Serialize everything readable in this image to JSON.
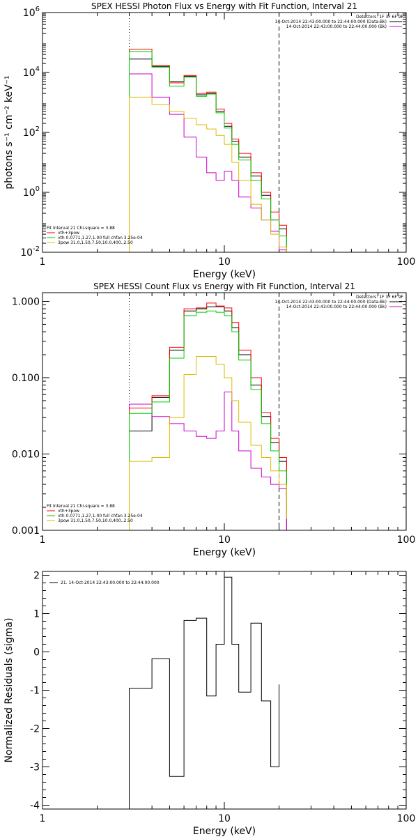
{
  "chart_data": [
    {
      "type": "line",
      "title": "SPEX HESSI Photon Flux vs Energy with Fit Function, Interval 21",
      "xlabel": "Energy (keV)",
      "ylabel": "photons s⁻¹ cm⁻² keV⁻¹",
      "xscale": "log",
      "yscale": "log",
      "xlim": [
        1,
        100
      ],
      "ylim": [
        0.01,
        1000000
      ],
      "xticks": [
        {
          "v": 1,
          "label": "1"
        },
        {
          "v": 10,
          "label": "10"
        },
        {
          "v": 100,
          "label": "100"
        }
      ],
      "yticks": [
        {
          "v": 0.01,
          "base": "10",
          "exp": "-2"
        },
        {
          "v": 1,
          "base": "10",
          "exp": "0"
        },
        {
          "v": 100,
          "base": "10",
          "exp": "2"
        },
        {
          "v": 10000,
          "base": "10",
          "exp": "4"
        },
        {
          "v": 1000000,
          "base": "10",
          "exp": "6"
        }
      ],
      "vlines": [
        {
          "x": 3.0,
          "style": "dotted"
        },
        {
          "x": 20.0,
          "style": "dashed"
        }
      ],
      "legend_top_right": [
        {
          "text": "Detectors: 1F 3F 6F 9F",
          "color": ""
        },
        {
          "text": "14-Oct-2014 22:43:00.000 to 22:44:00.000 (Data-Bk)",
          "color": "#000000"
        },
        {
          "text": "14-Oct-2014 22:43:00.000 to 22:44:00.000 (Bk)",
          "color": "#cc00cc"
        }
      ],
      "legend_bottom_left": [
        {
          "text": "Fit Interval 21   Chi-square = 3.88",
          "color": ""
        },
        {
          "text": "vth+3pow",
          "color": "#ff0000"
        },
        {
          "text": "vth 0.0771,1.27,1.00  full chfan 3.25e-04",
          "color": "#00cc00"
        },
        {
          "text": "3pow 31.0,1.50,7.50,10.0,400.,2.50",
          "color": "#ddbb00"
        }
      ],
      "bin_edges": [
        3.0,
        4.0,
        5.0,
        6.0,
        7.0,
        8.0,
        9.0,
        10.0,
        11.0,
        12.0,
        14.0,
        16.0,
        18.0,
        20.0,
        22.0
      ],
      "series": [
        {
          "name": "Data-Bk",
          "color": "#000000",
          "values": [
            28000,
            16000,
            5000,
            7500,
            1800,
            2000,
            500,
            160,
            50,
            15,
            3.5,
            0.8,
            0.12,
            0.06
          ]
        },
        {
          "name": "Bk",
          "color": "#cc00cc",
          "values": [
            9000,
            1500,
            400,
            70,
            15,
            4.5,
            2.5,
            5,
            2.5,
            0.7,
            0.3,
            0.12,
            0.05,
            0.012
          ]
        },
        {
          "name": "vth+3pow",
          "color": "#ff0000",
          "values": [
            60000,
            17000,
            4500,
            8000,
            2000,
            2200,
            600,
            200,
            60,
            20,
            4.5,
            1.0,
            0.22,
            0.08,
            0.012
          ]
        },
        {
          "name": "vth",
          "color": "#00cc00",
          "values": [
            50000,
            15000,
            3500,
            7000,
            1600,
            1900,
            450,
            140,
            40,
            12,
            2.5,
            0.6,
            0.12,
            0.035,
            0.008
          ]
        },
        {
          "name": "3pow",
          "color": "#ddbb00",
          "values": [
            1500,
            850,
            500,
            300,
            180,
            130,
            80,
            40,
            10,
            2.5,
            0.4,
            0.12,
            0.04,
            0.015
          ]
        }
      ]
    },
    {
      "type": "line",
      "title": "SPEX HESSI Count Flux vs Energy with Fit Function, Interval 21",
      "xlabel": "Energy (keV)",
      "ylabel": "",
      "xscale": "log",
      "yscale": "log",
      "xlim": [
        1,
        100
      ],
      "ylim": [
        0.001,
        1.3
      ],
      "xticks": [
        {
          "v": 1,
          "label": "1"
        },
        {
          "v": 10,
          "label": "10"
        },
        {
          "v": 100,
          "label": "100"
        }
      ],
      "yticks": [
        {
          "v": 0.001,
          "label": "0.001"
        },
        {
          "v": 0.01,
          "label": "0.010"
        },
        {
          "v": 0.1,
          "label": "0.100"
        },
        {
          "v": 1,
          "label": "1.000"
        }
      ],
      "vlines": [
        {
          "x": 3.0,
          "style": "dotted"
        },
        {
          "x": 20.0,
          "style": "dashed"
        }
      ],
      "legend_top_right": [
        {
          "text": "Detectors: 1F 3F 6F 9F",
          "color": ""
        },
        {
          "text": "14-Oct-2014 22:43:00.000 to 22:44:00.000 (Data-Bk)",
          "color": "#000000"
        },
        {
          "text": "14-Oct-2014 22:43:00.000 to 22:44:00.000 (Bk)",
          "color": "#cc00cc"
        }
      ],
      "legend_bottom_left": [
        {
          "text": "Fit Interval 21   Chi-square = 3.88",
          "color": ""
        },
        {
          "text": "vth+3pow",
          "color": "#ff0000"
        },
        {
          "text": "vth 0.0771,1.27,1.00  full chfan 3.25e-04",
          "color": "#00cc00"
        },
        {
          "text": "3pow 31.0,1.50,7.50,10.0,400.,2.50",
          "color": "#ddbb00"
        }
      ],
      "bin_edges": [
        3.0,
        4.0,
        5.0,
        6.0,
        7.0,
        8.0,
        9.0,
        10.0,
        11.0,
        12.0,
        14.0,
        16.0,
        18.0,
        20.0,
        22.0
      ],
      "series": [
        {
          "name": "Data-Bk",
          "color": "#000000",
          "values": [
            0.02,
            0.055,
            0.23,
            0.75,
            0.8,
            0.85,
            0.85,
            0.75,
            0.45,
            0.2,
            0.08,
            0.031,
            0.014,
            0.008
          ]
        },
        {
          "name": "Bk",
          "color": "#cc00cc",
          "values": [
            0.045,
            0.031,
            0.025,
            0.02,
            0.017,
            0.016,
            0.02,
            0.065,
            0.02,
            0.011,
            0.0065,
            0.005,
            0.004,
            0.0035
          ]
        },
        {
          "name": "vth+3pow",
          "color": "#ff0000",
          "values": [
            0.04,
            0.058,
            0.25,
            0.8,
            0.82,
            0.95,
            0.87,
            0.82,
            0.53,
            0.23,
            0.1,
            0.035,
            0.016,
            0.009,
            0.0028
          ]
        },
        {
          "name": "vth",
          "color": "#00cc00",
          "values": [
            0.034,
            0.048,
            0.18,
            0.65,
            0.72,
            0.75,
            0.72,
            0.65,
            0.4,
            0.17,
            0.07,
            0.025,
            0.011,
            0.006,
            0.0018
          ]
        },
        {
          "name": "3pow",
          "color": "#ddbb00",
          "values": [
            0.008,
            0.009,
            0.03,
            0.11,
            0.19,
            0.19,
            0.15,
            0.1,
            0.05,
            0.026,
            0.013,
            0.009,
            0.006,
            0.004,
            0.0014
          ]
        }
      ]
    },
    {
      "type": "line",
      "title": "",
      "xlabel": "Energy (keV)",
      "ylabel": "Normalized Residuals (sigma)",
      "xscale": "log",
      "yscale": "linear",
      "xlim": [
        1,
        100
      ],
      "ylim": [
        -4.1,
        2.1
      ],
      "xticks": [
        {
          "v": 1,
          "label": "1"
        },
        {
          "v": 10,
          "label": "10"
        },
        {
          "v": 100,
          "label": "100"
        }
      ],
      "yticks": [
        {
          "v": -4,
          "label": "-4"
        },
        {
          "v": -3,
          "label": "-3"
        },
        {
          "v": -2,
          "label": "-2"
        },
        {
          "v": -1,
          "label": "-1"
        },
        {
          "v": 0,
          "label": "0"
        },
        {
          "v": 1,
          "label": "1"
        },
        {
          "v": 2,
          "label": "2"
        }
      ],
      "vlines": [],
      "legend_top_left": [
        {
          "text": "21. 14-Oct-2014 22:43:00.000 to 22:44:00.000",
          "color": "#000000"
        }
      ],
      "bin_edges": [
        3.0,
        4.0,
        5.0,
        6.0,
        7.0,
        8.0,
        9.0,
        10.0,
        11.0,
        12.0,
        14.0,
        16.0,
        18.0,
        20.0
      ],
      "series": [
        {
          "name": "21. 14-Oct-2014 22:43:00.000 to 22:44:00.000",
          "color": "#000000",
          "values": [
            -0.95,
            -0.18,
            -3.25,
            0.82,
            0.88,
            -1.15,
            0.2,
            1.95,
            0.2,
            -1.05,
            0.75,
            -1.28,
            -3.0,
            -0.85
          ]
        }
      ]
    }
  ]
}
